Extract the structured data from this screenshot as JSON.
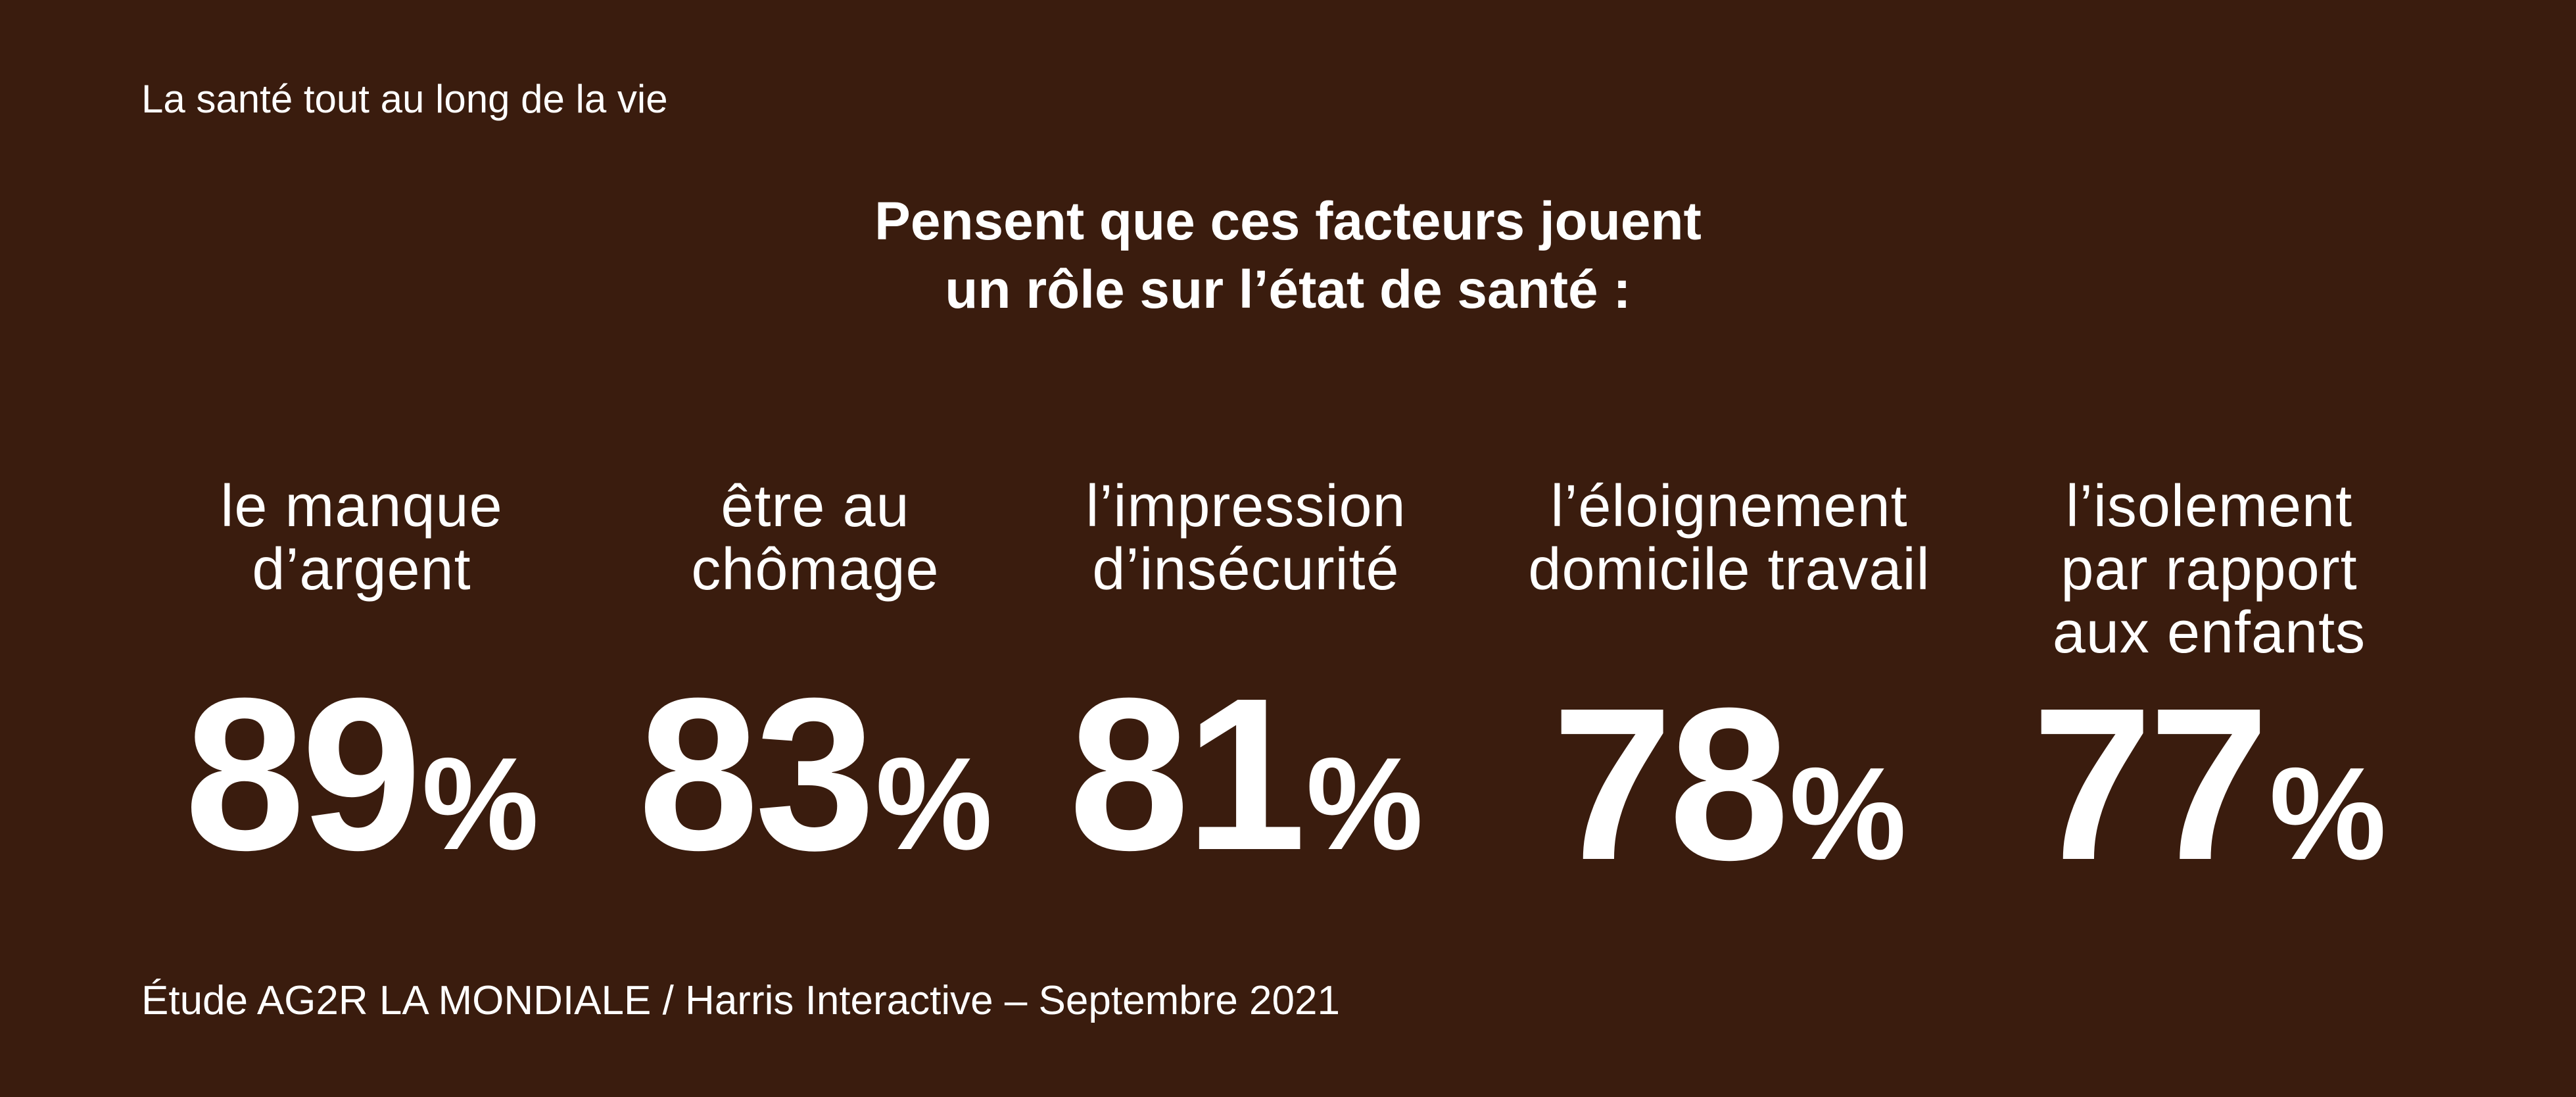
{
  "kicker": "La santé tout au long de la vie",
  "headline": {
    "line1": "Pensent que ces facteurs jouent",
    "line2": "un rôle sur l’état de santé :"
  },
  "stats": [
    {
      "label": [
        "le manque",
        "d’argent"
      ],
      "value": "89",
      "unit": "%"
    },
    {
      "label": [
        "être au",
        "chômage"
      ],
      "value": "83",
      "unit": "%"
    },
    {
      "label": [
        "l’impression",
        "d’insécurité"
      ],
      "value": "81",
      "unit": "%"
    },
    {
      "label": [
        "l’éloignement",
        "domicile travail"
      ],
      "value": "78",
      "unit": "%"
    },
    {
      "label": [
        "l’isolement",
        "par rapport",
        "aux enfants"
      ],
      "value": "77",
      "unit": "%"
    }
  ],
  "source": "Étude AG2R LA MONDIALE / Harris Interactive – Septembre 2021",
  "colors": {
    "background": "#3a1c0e",
    "text": "#ffffff"
  }
}
